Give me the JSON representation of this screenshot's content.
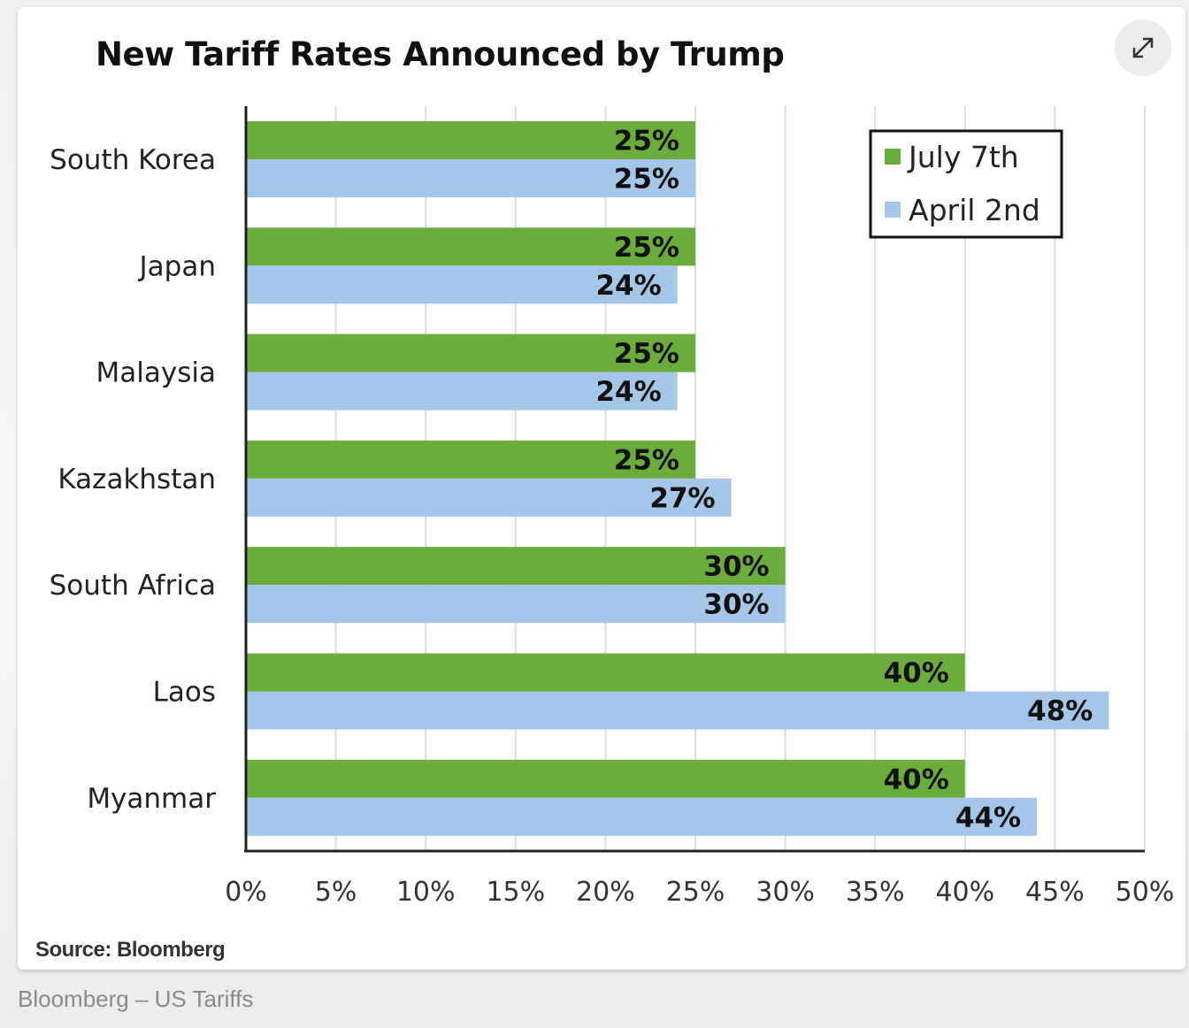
{
  "caption": "Bloomberg – US Tariffs",
  "expand_button": {
    "icon": "expand-diagonal-arrows-icon",
    "label": "Expand"
  },
  "colors": {
    "july": "#6aad3d",
    "april": "#a4c6e8"
  },
  "chart_data": {
    "type": "bar",
    "orientation": "horizontal",
    "title": "New Tariff Rates Announced by Trump",
    "source": "Source: Bloomberg",
    "xlabel": "",
    "ylabel": "",
    "categories": [
      "South Korea",
      "Japan",
      "Malaysia",
      "Kazakhstan",
      "South Africa",
      "Laos",
      "Myanmar"
    ],
    "series": [
      {
        "name": "July 7th",
        "color": "#6aad3d",
        "values": [
          25,
          25,
          25,
          25,
          30,
          40,
          40
        ]
      },
      {
        "name": "April 2nd",
        "color": "#a4c6e8",
        "values": [
          25,
          24,
          24,
          27,
          30,
          48,
          44
        ]
      }
    ],
    "value_suffix": "%",
    "xlim": [
      0,
      50
    ],
    "xticks": [
      0,
      5,
      10,
      15,
      20,
      25,
      30,
      35,
      40,
      45,
      50
    ],
    "xtick_labels": [
      "0%",
      "5%",
      "10%",
      "15%",
      "20%",
      "25%",
      "30%",
      "35%",
      "40%",
      "45%",
      "50%"
    ],
    "grid": "vertical",
    "legend_position": "top-right",
    "data_labels": true
  }
}
